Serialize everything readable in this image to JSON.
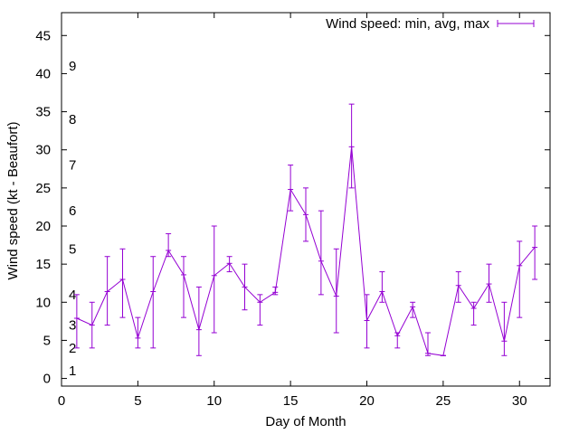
{
  "chart_data": {
    "type": "line",
    "title": "",
    "xlabel": "Day of Month",
    "ylabel": "Wind speed (kt - Beaufort)",
    "xlim": [
      0,
      32
    ],
    "ylim": [
      -1,
      48
    ],
    "xticks": [
      0,
      5,
      10,
      15,
      20,
      25,
      30
    ],
    "yticks": [
      0,
      5,
      10,
      15,
      20,
      25,
      30,
      35,
      40,
      45
    ],
    "grid": false,
    "legend_position": "top-right",
    "line_color": "#9400d3",
    "series": [
      {
        "name": "Wind speed: min, avg, max",
        "points": [
          {
            "x": 1,
            "avg": 7.9,
            "min": 4,
            "max": 11
          },
          {
            "x": 2,
            "avg": 7.0,
            "min": 4,
            "max": 10
          },
          {
            "x": 3,
            "avg": 11.4,
            "min": 7,
            "max": 16
          },
          {
            "x": 4,
            "avg": 13.0,
            "min": 8,
            "max": 17
          },
          {
            "x": 5,
            "avg": 5.3,
            "min": 4,
            "max": 8
          },
          {
            "x": 6,
            "avg": 11.4,
            "min": 4,
            "max": 16
          },
          {
            "x": 7,
            "avg": 16.8,
            "min": 16,
            "max": 19
          },
          {
            "x": 8,
            "avg": 13.6,
            "min": 8,
            "max": 16
          },
          {
            "x": 9,
            "avg": 6.4,
            "min": 3,
            "max": 12
          },
          {
            "x": 10,
            "avg": 13.5,
            "min": 6,
            "max": 20
          },
          {
            "x": 11,
            "avg": 15.1,
            "min": 14,
            "max": 16
          },
          {
            "x": 12,
            "avg": 12.0,
            "min": 9,
            "max": 15
          },
          {
            "x": 13,
            "avg": 10.0,
            "min": 7,
            "max": 11
          },
          {
            "x": 14,
            "avg": 11.3,
            "min": 11,
            "max": 12
          },
          {
            "x": 15,
            "avg": 24.8,
            "min": 22,
            "max": 28
          },
          {
            "x": 16,
            "avg": 21.5,
            "min": 18,
            "max": 25
          },
          {
            "x": 17,
            "avg": 15.4,
            "min": 11,
            "max": 22
          },
          {
            "x": 18,
            "avg": 10.8,
            "min": 6,
            "max": 17
          },
          {
            "x": 19,
            "avg": 30.4,
            "min": 25,
            "max": 36
          },
          {
            "x": 20,
            "avg": 7.6,
            "min": 4,
            "max": 11
          },
          {
            "x": 21,
            "avg": 11.4,
            "min": 10,
            "max": 14
          },
          {
            "x": 22,
            "avg": 5.6,
            "min": 4,
            "max": 6
          },
          {
            "x": 23,
            "avg": 9.4,
            "min": 8,
            "max": 10
          },
          {
            "x": 24,
            "avg": 3.3,
            "min": 3,
            "max": 6
          },
          {
            "x": 25,
            "avg": 3.0,
            "min": 3,
            "max": 3
          },
          {
            "x": 26,
            "avg": 12.2,
            "min": 10,
            "max": 14
          },
          {
            "x": 27,
            "avg": 9.2,
            "min": 7,
            "max": 10
          },
          {
            "x": 28,
            "avg": 12.4,
            "min": 10,
            "max": 15
          },
          {
            "x": 29,
            "avg": 4.9,
            "min": 3,
            "max": 10
          },
          {
            "x": 30,
            "avg": 14.8,
            "min": 8,
            "max": 18
          },
          {
            "x": 31,
            "avg": 17.2,
            "min": 13,
            "max": 20
          }
        ]
      }
    ],
    "beaufort_labels": [
      {
        "label": "1",
        "y": 1
      },
      {
        "label": "2",
        "y": 4
      },
      {
        "label": "3",
        "y": 7
      },
      {
        "label": "4",
        "y": 11
      },
      {
        "label": "5",
        "y": 17
      },
      {
        "label": "6",
        "y": 22
      },
      {
        "label": "7",
        "y": 28
      },
      {
        "label": "8",
        "y": 34
      },
      {
        "label": "9",
        "y": 41
      }
    ]
  }
}
